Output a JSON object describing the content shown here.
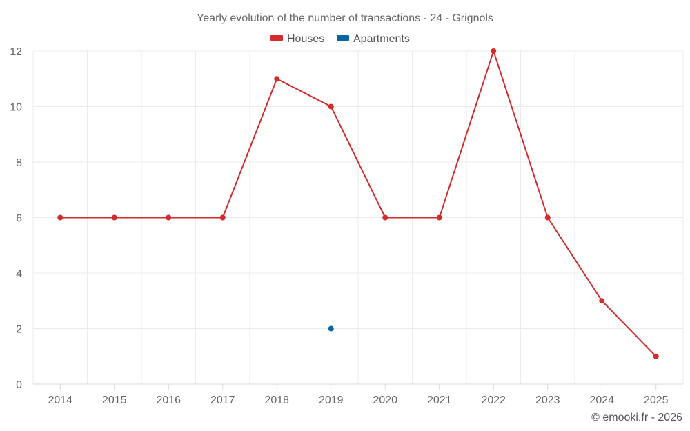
{
  "chart_data": {
    "type": "line",
    "title": "Yearly evolution of the number of transactions - 24 - Grignols",
    "categories": [
      "2014",
      "2015",
      "2016",
      "2017",
      "2018",
      "2019",
      "2020",
      "2021",
      "2022",
      "2023",
      "2024",
      "2025"
    ],
    "ylim": [
      0,
      12
    ],
    "yticks": [
      0,
      2,
      4,
      6,
      8,
      10,
      12
    ],
    "grid": true,
    "legend_position": "top-center",
    "series": [
      {
        "name": "Houses",
        "color": "#d32a2a",
        "values": [
          6,
          6,
          6,
          6,
          11,
          10,
          6,
          6,
          12,
          6,
          3,
          1
        ]
      },
      {
        "name": "Apartments",
        "color": "#0a64a0",
        "values": [
          null,
          null,
          null,
          null,
          null,
          2,
          null,
          null,
          null,
          null,
          null,
          null
        ]
      }
    ],
    "credit": "© emooki.fr - 2026"
  }
}
